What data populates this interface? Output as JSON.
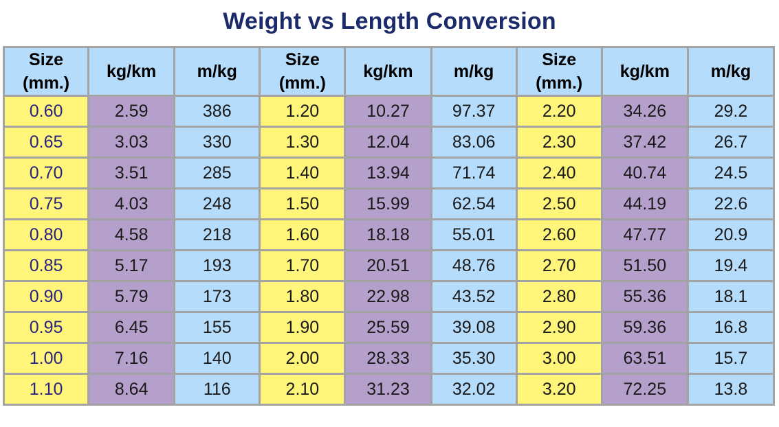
{
  "title": "Weight vs Length Conversion",
  "headers": [
    "Size\n(mm.)",
    "kg/km",
    "m/kg",
    "Size\n(mm.)",
    "kg/km",
    "m/kg",
    "Size\n(mm.)",
    "kg/km",
    "m/kg"
  ],
  "rows": [
    [
      "0.60",
      "2.59",
      "386",
      "1.20",
      "10.27",
      "97.37",
      "2.20",
      "34.26",
      "29.2"
    ],
    [
      "0.65",
      "3.03",
      "330",
      "1.30",
      "12.04",
      "83.06",
      "2.30",
      "37.42",
      "26.7"
    ],
    [
      "0.70",
      "3.51",
      "285",
      "1.40",
      "13.94",
      "71.74",
      "2.40",
      "40.74",
      "24.5"
    ],
    [
      "0.75",
      "4.03",
      "248",
      "1.50",
      "15.99",
      "62.54",
      "2.50",
      "44.19",
      "22.6"
    ],
    [
      "0.80",
      "4.58",
      "218",
      "1.60",
      "18.18",
      "55.01",
      "2.60",
      "47.77",
      "20.9"
    ],
    [
      "0.85",
      "5.17",
      "193",
      "1.70",
      "20.51",
      "48.76",
      "2.70",
      "51.50",
      "19.4"
    ],
    [
      "0.90",
      "5.79",
      "173",
      "1.80",
      "22.98",
      "43.52",
      "2.80",
      "55.36",
      "18.1"
    ],
    [
      "0.95",
      "6.45",
      "155",
      "1.90",
      "25.59",
      "39.08",
      "2.90",
      "59.36",
      "16.8"
    ],
    [
      "1.00",
      "7.16",
      "140",
      "2.00",
      "28.33",
      "35.30",
      "3.00",
      "63.51",
      "15.7"
    ],
    [
      "1.10",
      "8.64",
      "116",
      "2.10",
      "31.23",
      "32.02",
      "3.20",
      "72.25",
      "13.8"
    ]
  ],
  "colors": {
    "title": "#1b2a6b",
    "header_bg": "#b6dcfb",
    "size_bg": "#fef57a",
    "kgkm_bg": "#b5a0cc",
    "mkg_bg": "#b6dcfb",
    "border": "#a3a3a3",
    "first_size_text": "#2a2382"
  }
}
